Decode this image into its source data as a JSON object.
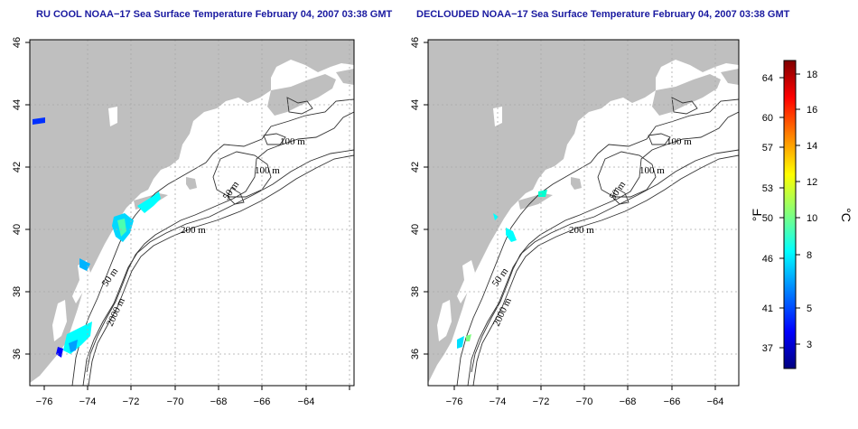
{
  "panels": [
    {
      "id": "left",
      "title": "RU COOL NOAA−17 Sea Surface Temperature February 04, 2007 03:38 GMT"
    },
    {
      "id": "right",
      "title": "DECLOUDED NOAA−17 Sea Surface Temperature February 04, 2007 03:38 GMT"
    }
  ],
  "axes": {
    "lon_ticks": [
      "−76",
      "−74",
      "−72",
      "−70",
      "−68",
      "−66",
      "−64"
    ],
    "lat_ticks": [
      "36",
      "38",
      "40",
      "42",
      "44",
      "46"
    ],
    "lon_range": [
      -77.2,
      -63
    ],
    "lat_range": [
      35,
      46
    ],
    "grid": "dotted"
  },
  "contour_labels": {
    "left": [
      "100 m",
      "100 m",
      "50 m",
      "200 m",
      "50 m",
      "2000 m"
    ],
    "right": [
      "100 m",
      "100 m",
      "50 m",
      "200 m",
      "50 m",
      "2000 m"
    ]
  },
  "colorbar": {
    "fahrenheit_ticks": [
      "64",
      "60",
      "57",
      "53",
      "50",
      "46",
      "41",
      "37"
    ],
    "celsius_ticks": [
      "18",
      "16",
      "14",
      "12",
      "10",
      "8",
      "5",
      "3"
    ],
    "unit_f": "°F",
    "unit_c": "°C",
    "colors": [
      "#00007f",
      "#0000ff",
      "#007fff",
      "#00ffff",
      "#7fff7f",
      "#ffff00",
      "#ff7f00",
      "#ff0000",
      "#7f0000"
    ]
  },
  "colors": {
    "land": "#bfbfbf",
    "ocean": "#ffffff",
    "title": "#1a1aa0"
  }
}
